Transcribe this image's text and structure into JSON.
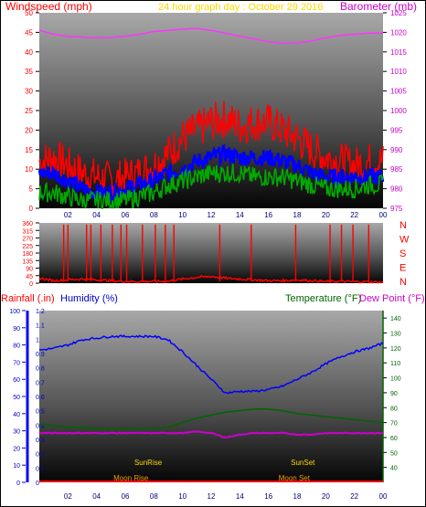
{
  "header": {
    "left_label": "Windspeed (mph)",
    "center_label": "24 hour graph day : October 29 2016",
    "right_label": "Barometer (mb)"
  },
  "bottom_header": {
    "rain_label": "Rainfall (.in)",
    "humidity_label": "Humidity (%)",
    "temp_label": "Temperature (°F)",
    "dew_label": "Dew Point (°F)"
  },
  "colors": {
    "wind_axis": "#ff0000",
    "baro_axis": "#cc00cc",
    "title": "#ffd700",
    "wind_gust": "#ff0000",
    "wind_avg": "#0000ff",
    "wind_low": "#00aa00",
    "baro": "#ff33ff",
    "dir": "#ff0000",
    "rain": "#ff0000",
    "humidity": "#0000ff",
    "temp": "#006400",
    "dew": "#cc00cc",
    "sun": "#ffd700",
    "moon": "#ff9900"
  },
  "chart_data": [
    {
      "type": "line",
      "title": "24 hour graph day : October 29 2016",
      "x_ticks": [
        "02",
        "04",
        "06",
        "08",
        "10",
        "12",
        "14",
        "16",
        "18",
        "20",
        "22",
        "00"
      ],
      "xlim": [
        0,
        24
      ],
      "left_axis": {
        "label": "Windspeed (mph)",
        "ylim": [
          0,
          50
        ],
        "ticks": [
          0,
          5,
          10,
          15,
          20,
          25,
          30,
          35,
          40,
          45,
          50
        ]
      },
      "right_axis": {
        "label": "Barometer (mb)",
        "ylim": [
          975,
          1025
        ],
        "ticks": [
          975,
          980,
          985,
          990,
          995,
          1000,
          1005,
          1010,
          1015,
          1020,
          1025
        ]
      },
      "series": [
        {
          "name": "Wind Gust",
          "axis": "left",
          "x": [
            0,
            1,
            2,
            3,
            4,
            5,
            6,
            7,
            8,
            9,
            10,
            11,
            12,
            13,
            14,
            15,
            16,
            17,
            18,
            19,
            20,
            21,
            22,
            23,
            24
          ],
          "values": [
            12,
            13,
            11,
            9,
            8,
            7,
            8,
            9,
            11,
            14,
            18,
            20,
            22,
            23,
            21,
            22,
            22,
            20,
            18,
            15,
            13,
            12,
            11,
            12,
            12
          ]
        },
        {
          "name": "Wind Speed",
          "axis": "left",
          "x": [
            0,
            1,
            2,
            3,
            4,
            5,
            6,
            7,
            8,
            9,
            10,
            11,
            12,
            13,
            14,
            15,
            16,
            17,
            18,
            19,
            20,
            21,
            22,
            23,
            24
          ],
          "values": [
            9,
            9,
            7,
            5,
            4,
            4,
            5,
            6,
            7,
            9,
            10,
            12,
            13,
            14,
            13,
            13,
            13,
            12,
            11,
            9,
            8,
            8,
            8,
            8,
            8
          ]
        },
        {
          "name": "Wind Low",
          "axis": "left",
          "x": [
            0,
            1,
            2,
            3,
            4,
            5,
            6,
            7,
            8,
            9,
            10,
            11,
            12,
            13,
            14,
            15,
            16,
            17,
            18,
            19,
            20,
            21,
            22,
            23,
            24
          ],
          "values": [
            4,
            4,
            3,
            2,
            2,
            2,
            2,
            3,
            4,
            6,
            7,
            8,
            9,
            9,
            9,
            8,
            8,
            8,
            7,
            6,
            5,
            5,
            5,
            6,
            6
          ]
        },
        {
          "name": "Barometer",
          "axis": "right",
          "x": [
            0,
            1,
            2,
            3,
            4,
            5,
            6,
            7,
            8,
            9,
            10,
            11,
            12,
            13,
            14,
            15,
            16,
            17,
            18,
            19,
            20,
            21,
            22,
            23,
            24
          ],
          "values": [
            1020.5,
            1019.5,
            1019.0,
            1018.8,
            1018.6,
            1018.7,
            1019.0,
            1019.5,
            1020.2,
            1020.5,
            1020.8,
            1021.0,
            1020.5,
            1019.8,
            1019.0,
            1018.3,
            1017.6,
            1017.2,
            1017.3,
            1017.8,
            1018.6,
            1019.2,
            1019.5,
            1019.8,
            1019.8
          ]
        }
      ]
    },
    {
      "type": "line",
      "x_ticks": [],
      "xlim": [
        0,
        24
      ],
      "left_axis": {
        "label": "",
        "ylim": [
          0,
          360
        ],
        "ticks": [
          0,
          45,
          90,
          135,
          180,
          225,
          270,
          315,
          360
        ]
      },
      "direction_labels": [
        "N",
        "W",
        "S",
        "E",
        "N"
      ],
      "series": [
        {
          "name": "Wind Direction",
          "x": [
            0,
            1,
            2,
            3,
            4,
            5,
            6,
            7,
            8,
            9,
            10,
            11,
            12,
            13,
            14,
            15,
            16,
            17,
            18,
            19,
            20,
            21,
            22,
            23,
            24
          ],
          "values": [
            30,
            15,
            20,
            25,
            20,
            15,
            10,
            10,
            10,
            12,
            25,
            35,
            40,
            30,
            25,
            20,
            15,
            15,
            20,
            15,
            10,
            10,
            10,
            8,
            5
          ]
        }
      ],
      "spikes_hours": [
        1.7,
        2.0,
        3.3,
        3.6,
        4.3,
        5.1,
        5.7,
        6.1,
        7.2,
        8.1,
        8.8,
        9.4,
        12.6,
        14.8,
        17.9,
        20.3,
        21.1,
        21.9,
        23.0
      ]
    },
    {
      "type": "line",
      "x_ticks": [
        "02",
        "04",
        "06",
        "08",
        "10",
        "12",
        "14",
        "16",
        "18",
        "20",
        "22",
        "00"
      ],
      "xlim": [
        0,
        24
      ],
      "rain_axis": {
        "label": "Rainfall (.in)",
        "ylim": [
          0,
          1.2
        ],
        "ticks": [
          0,
          0.1,
          0.2,
          0.3,
          0.4,
          0.5,
          0.6,
          0.7,
          0.8,
          0.9,
          1,
          1.1,
          1.2
        ]
      },
      "humidity_axis": {
        "label": "Humidity (%)",
        "ylim": [
          0,
          100
        ],
        "ticks": [
          0,
          10,
          20,
          30,
          40,
          50,
          60,
          70,
          80,
          90,
          100
        ]
      },
      "temp_axis": {
        "label": "Temperature (°F)",
        "ylim": [
          30,
          145
        ],
        "ticks": [
          40,
          50,
          60,
          70,
          80,
          90,
          100,
          110,
          120,
          130,
          140
        ]
      },
      "series": [
        {
          "name": "Humidity",
          "axis": "humidity",
          "x": [
            0,
            1,
            2,
            3,
            4,
            5,
            6,
            7,
            8,
            9,
            10,
            11,
            12,
            13,
            14,
            15,
            16,
            17,
            18,
            19,
            20,
            21,
            22,
            23,
            24
          ],
          "values": [
            77,
            78,
            80,
            83,
            84,
            85,
            85,
            85,
            85,
            83,
            76,
            68,
            60,
            52,
            53,
            53,
            54,
            56,
            60,
            64,
            69,
            73,
            76,
            78,
            81
          ]
        },
        {
          "name": "Temperature",
          "axis": "temp",
          "x": [
            0,
            1,
            2,
            3,
            4,
            5,
            6,
            7,
            8,
            9,
            10,
            11,
            12,
            13,
            14,
            15,
            16,
            17,
            18,
            19,
            20,
            21,
            22,
            23,
            24
          ],
          "values": [
            69,
            68,
            67,
            67,
            66,
            66,
            66,
            66,
            66,
            67,
            70,
            73,
            75,
            77,
            78,
            79,
            79,
            78,
            76,
            75,
            74,
            73,
            72,
            71,
            70
          ]
        },
        {
          "name": "Dew Point",
          "axis": "temp",
          "x": [
            0,
            1,
            2,
            3,
            4,
            5,
            6,
            7,
            8,
            9,
            10,
            11,
            12,
            13,
            14,
            15,
            16,
            17,
            18,
            19,
            20,
            21,
            22,
            23,
            24
          ],
          "values": [
            63,
            63,
            63,
            63,
            63,
            63,
            63,
            63,
            63,
            63,
            63,
            64,
            63,
            60,
            62,
            63,
            63,
            63,
            62,
            62,
            63,
            63,
            63,
            63,
            63
          ]
        },
        {
          "name": "Rainfall",
          "axis": "rain",
          "x": [
            0,
            24
          ],
          "values": [
            0,
            0
          ]
        }
      ],
      "annotations": [
        {
          "text": "SunRise",
          "hour": 7.6,
          "kind": "sun"
        },
        {
          "text": "SunSet",
          "hour": 18.4,
          "kind": "sun"
        },
        {
          "text": "Moon Rise",
          "hour": 6.4,
          "kind": "moon"
        },
        {
          "text": "Moon Set",
          "hour": 17.8,
          "kind": "moon"
        }
      ]
    }
  ]
}
